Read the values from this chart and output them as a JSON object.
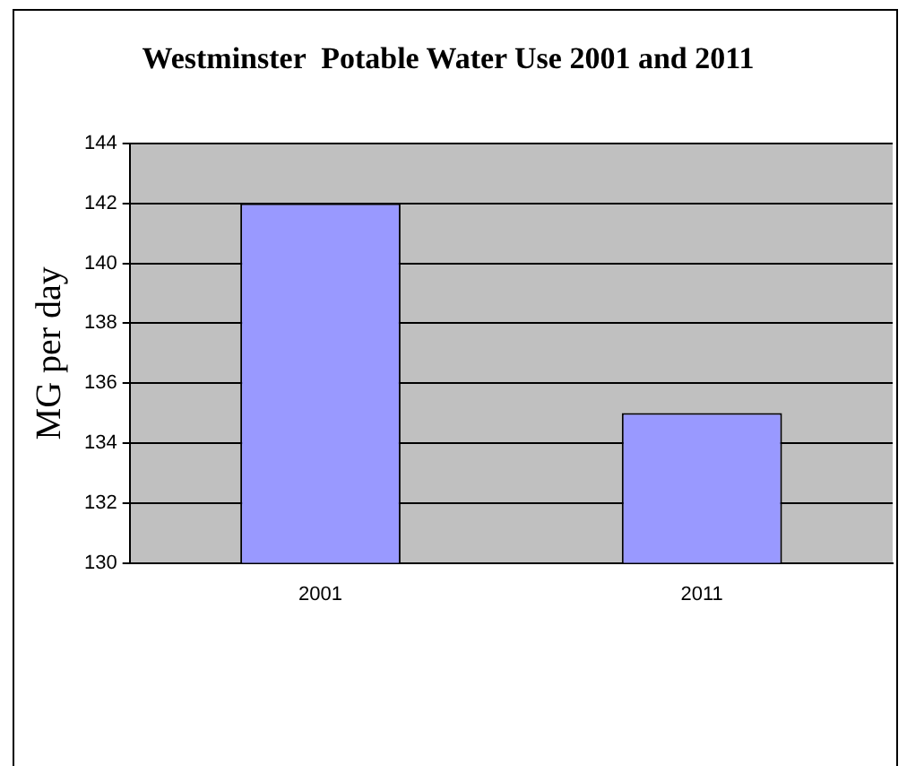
{
  "chart_data": {
    "type": "bar",
    "title": "Westminster  Potable Water Use 2001 and 2011",
    "ylabel": "MG per day",
    "categories": [
      "2001",
      "2011"
    ],
    "values": [
      142,
      135
    ],
    "color": "#9999ff",
    "ylim": [
      130,
      144
    ],
    "yticks": [
      130,
      132,
      134,
      136,
      138,
      140,
      142,
      144
    ],
    "grid": "y",
    "legend": false
  }
}
